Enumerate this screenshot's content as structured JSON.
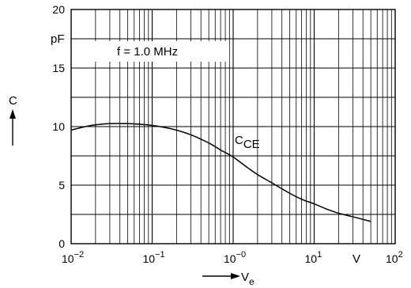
{
  "chart_data": {
    "type": "line",
    "title": "",
    "xlabel": "V",
    "xlabel_sub": "e",
    "ylabel": "C",
    "x_scale": "log",
    "xlim": [
      0.01,
      100
    ],
    "ylim": [
      0,
      20
    ],
    "grid": true,
    "x_tick_labels": [
      {
        "base": "10",
        "exp": "−2",
        "value": 0.01
      },
      {
        "base": "10",
        "exp": "−1",
        "value": 0.1
      },
      {
        "base": "10",
        "exp": "−0",
        "value": 1
      },
      {
        "base": "10",
        "exp": "1",
        "value": 10
      },
      {
        "base": "10",
        "exp": "2",
        "value": 100
      }
    ],
    "x_unit": "V",
    "y_tick_labels": [
      {
        "text": "0",
        "value": 0
      },
      {
        "text": "5",
        "value": 5
      },
      {
        "text": "10",
        "value": 10
      },
      {
        "text": "15",
        "value": 15
      },
      {
        "text": "20",
        "value": 20
      }
    ],
    "y_unit": "pF",
    "annotation": "f = 1.0 MHz",
    "series": [
      {
        "name": "CCE",
        "name_main": "C",
        "name_sub": "CE",
        "x": [
          0.01,
          0.015,
          0.02,
          0.03,
          0.05,
          0.07,
          0.1,
          0.15,
          0.2,
          0.3,
          0.5,
          0.7,
          1,
          1.5,
          2,
          3,
          5,
          7,
          10,
          15,
          20,
          30,
          50
        ],
        "y": [
          9.7,
          10.0,
          10.15,
          10.25,
          10.25,
          10.2,
          10.1,
          9.9,
          9.7,
          9.3,
          8.6,
          8.0,
          7.4,
          6.5,
          5.9,
          5.2,
          4.3,
          3.8,
          3.4,
          2.9,
          2.6,
          2.3,
          1.9
        ]
      }
    ]
  }
}
